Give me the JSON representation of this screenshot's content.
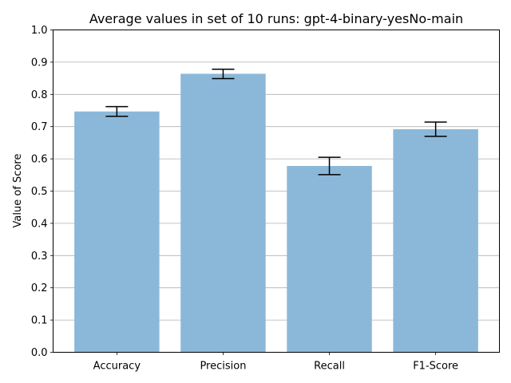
{
  "chart_data": {
    "type": "bar",
    "title": "Average values in set of 10 runs: gpt-4-binary-yesNo-main",
    "xlabel": "",
    "ylabel": "Value of Score",
    "categories": [
      "Accuracy",
      "Precision",
      "Recall",
      "F1-Score"
    ],
    "values": [
      0.747,
      0.864,
      0.578,
      0.692
    ],
    "error_low": [
      0.732,
      0.849,
      0.551,
      0.67
    ],
    "error_high": [
      0.762,
      0.878,
      0.605,
      0.714
    ],
    "ylim": [
      0,
      1.0
    ],
    "yticks": [
      "0.0",
      "0.1",
      "0.2",
      "0.3",
      "0.4",
      "0.5",
      "0.6",
      "0.7",
      "0.8",
      "0.9",
      "1.0"
    ],
    "grid": "y",
    "bar_color": "#8bb8d9",
    "error_color": "#000000"
  }
}
